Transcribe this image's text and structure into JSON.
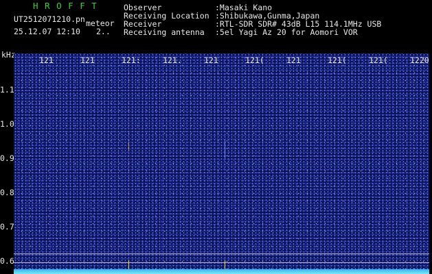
{
  "header": {
    "app_name": "H R O F F T",
    "file_name": "UT2512071210.pn",
    "mode": "meteor",
    "timestamp": "25.12.07 12:10",
    "extra": "2..",
    "info": [
      {
        "label": "Observer",
        "value": ":Masaki Kano"
      },
      {
        "label": "Receiving Location",
        "value": ":Shibukawa,Gunma,Japan"
      },
      {
        "label": "Receiver",
        "value": ":RTL-SDR SDR# 43dB L15 114.1MHz USB"
      },
      {
        "label": "Receiving antenna",
        "value": ":5el Yagi Az 20 for Aomori VOR"
      }
    ]
  },
  "spectrogram": {
    "y_unit": "kHz",
    "y_labels": [
      "1.1",
      "1.0",
      "0.9",
      "0.8",
      "0.7",
      "0.6"
    ],
    "x_labels": [
      "121",
      "121",
      "121:",
      "121.",
      "121",
      "121(",
      "121",
      "121(",
      "121(",
      "1220"
    ]
  }
}
